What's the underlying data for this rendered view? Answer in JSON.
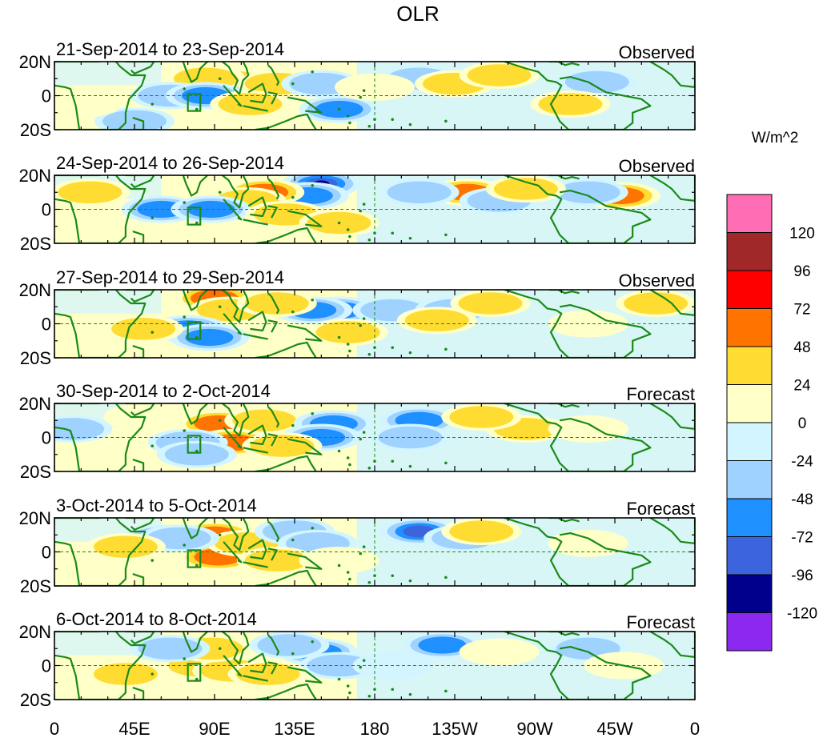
{
  "chart_data": {
    "type": "heatmap",
    "title": "OLR",
    "units": "W/m^2",
    "x_ticks": [
      "0",
      "45E",
      "90E",
      "135E",
      "180",
      "135W",
      "90W",
      "45W",
      "0"
    ],
    "y_ticks": [
      "20N",
      "0",
      "20S"
    ],
    "xlim": [
      0,
      360
    ],
    "ylim": [
      -20,
      20
    ],
    "colorbar": {
      "labels": [
        "120",
        "96",
        "72",
        "48",
        "24",
        "0",
        "-24",
        "-48",
        "-72",
        "-96",
        "-120"
      ],
      "colors": [
        "#ff6eb4",
        "#a02828",
        "#ff0000",
        "#ff7300",
        "#ffdc32",
        "#ffffc8",
        "#d2f5ff",
        "#a0d2ff",
        "#1e90ff",
        "#3c64dc",
        "#00008c",
        "#8c28f0"
      ]
    },
    "panels": [
      {
        "period": "21-Sep-2014 to 23-Sep-2014",
        "kind": "Observed",
        "anomalies": [
          {
            "lon": 100,
            "lat": 8,
            "value": 55
          },
          {
            "lon": 85,
            "lat": 10,
            "value": 30
          },
          {
            "lon": 125,
            "lat": 7,
            "value": 30
          },
          {
            "lon": 150,
            "lat": 7,
            "value": -45
          },
          {
            "lon": 160,
            "lat": -8,
            "value": -55
          },
          {
            "lon": 65,
            "lat": 0,
            "value": -45
          },
          {
            "lon": 85,
            "lat": 0,
            "value": -55
          },
          {
            "lon": 45,
            "lat": -15,
            "value": -45
          },
          {
            "lon": 205,
            "lat": 10,
            "value": -30
          },
          {
            "lon": 225,
            "lat": 7,
            "value": 35
          },
          {
            "lon": 305,
            "lat": 8,
            "value": -40
          },
          {
            "lon": 110,
            "lat": -5,
            "value": 30
          },
          {
            "lon": 250,
            "lat": 12,
            "value": 25
          },
          {
            "lon": 290,
            "lat": -5,
            "value": 25
          },
          {
            "lon": 180,
            "lat": 5,
            "value": 15
          },
          {
            "lon": 15,
            "lat": -5,
            "value": 20
          }
        ]
      },
      {
        "period": "24-Sep-2014 to 26-Sep-2014",
        "kind": "Observed",
        "anomalies": [
          {
            "lon": 150,
            "lat": 15,
            "value": -110
          },
          {
            "lon": 143,
            "lat": 8,
            "value": -50
          },
          {
            "lon": 118,
            "lat": 10,
            "value": 50
          },
          {
            "lon": 108,
            "lat": 5,
            "value": 30
          },
          {
            "lon": 232,
            "lat": 10,
            "value": 60
          },
          {
            "lon": 318,
            "lat": 8,
            "value": 60
          },
          {
            "lon": 60,
            "lat": 0,
            "value": -55
          },
          {
            "lon": 88,
            "lat": 0,
            "value": -50
          },
          {
            "lon": 205,
            "lat": 10,
            "value": -40
          },
          {
            "lon": 300,
            "lat": 10,
            "value": -40
          },
          {
            "lon": 250,
            "lat": 5,
            "value": -40
          },
          {
            "lon": 130,
            "lat": -3,
            "value": 30
          },
          {
            "lon": 160,
            "lat": -8,
            "value": 25
          },
          {
            "lon": 265,
            "lat": 12,
            "value": 25
          },
          {
            "lon": 20,
            "lat": 10,
            "value": 25
          }
        ]
      },
      {
        "period": "27-Sep-2014 to 29-Sep-2014",
        "kind": "Observed",
        "anomalies": [
          {
            "lon": 90,
            "lat": 15,
            "value": 70
          },
          {
            "lon": 98,
            "lat": 8,
            "value": 45
          },
          {
            "lon": 160,
            "lat": 8,
            "value": -75
          },
          {
            "lon": 145,
            "lat": 8,
            "value": -60
          },
          {
            "lon": 190,
            "lat": 8,
            "value": -40
          },
          {
            "lon": 225,
            "lat": 8,
            "value": -30
          },
          {
            "lon": 75,
            "lat": -3,
            "value": -55
          },
          {
            "lon": 87,
            "lat": -8,
            "value": -55
          },
          {
            "lon": 125,
            "lat": 12,
            "value": 35
          },
          {
            "lon": 215,
            "lat": 2,
            "value": 30
          },
          {
            "lon": 245,
            "lat": 12,
            "value": 30
          },
          {
            "lon": 338,
            "lat": 12,
            "value": 30
          },
          {
            "lon": 165,
            "lat": -5,
            "value": 30
          },
          {
            "lon": 300,
            "lat": 0,
            "value": 20
          },
          {
            "lon": 50,
            "lat": -3,
            "value": 25
          }
        ]
      },
      {
        "period": "30-Sep-2014 to 2-Oct-2014",
        "kind": "Forecast",
        "anomalies": [
          {
            "lon": 92,
            "lat": 8,
            "value": 70
          },
          {
            "lon": 100,
            "lat": -3,
            "value": 55
          },
          {
            "lon": 118,
            "lat": 10,
            "value": 45
          },
          {
            "lon": 157,
            "lat": 8,
            "value": -70
          },
          {
            "lon": 150,
            "lat": 0,
            "value": -50
          },
          {
            "lon": 205,
            "lat": 10,
            "value": -70
          },
          {
            "lon": 200,
            "lat": 0,
            "value": -30
          },
          {
            "lon": 75,
            "lat": -3,
            "value": -35
          },
          {
            "lon": 80,
            "lat": -10,
            "value": -30
          },
          {
            "lon": 128,
            "lat": -5,
            "value": 30
          },
          {
            "lon": 265,
            "lat": 5,
            "value": 30
          },
          {
            "lon": 240,
            "lat": 12,
            "value": 25
          },
          {
            "lon": 50,
            "lat": 12,
            "value": 20
          },
          {
            "lon": 10,
            "lat": 5,
            "value": -25
          },
          {
            "lon": 300,
            "lat": 5,
            "value": 20
          }
        ]
      },
      {
        "period": "3-Oct-2014 to 5-Oct-2014",
        "kind": "Forecast",
        "anomalies": [
          {
            "lon": 90,
            "lat": 10,
            "value": 65
          },
          {
            "lon": 92,
            "lat": -3,
            "value": 60
          },
          {
            "lon": 108,
            "lat": 5,
            "value": 45
          },
          {
            "lon": 135,
            "lat": 12,
            "value": -45
          },
          {
            "lon": 148,
            "lat": 5,
            "value": -35
          },
          {
            "lon": 205,
            "lat": 12,
            "value": -75
          },
          {
            "lon": 60,
            "lat": 8,
            "value": -40
          },
          {
            "lon": 70,
            "lat": 8,
            "value": -30
          },
          {
            "lon": 230,
            "lat": 8,
            "value": -25
          },
          {
            "lon": 40,
            "lat": 3,
            "value": 30
          },
          {
            "lon": 125,
            "lat": -5,
            "value": 30
          },
          {
            "lon": 240,
            "lat": 12,
            "value": 25
          },
          {
            "lon": 300,
            "lat": 5,
            "value": 20
          },
          {
            "lon": 160,
            "lat": -5,
            "value": 20
          },
          {
            "lon": 20,
            "lat": -10,
            "value": 20
          }
        ]
      },
      {
        "period": "6-Oct-2014 to 8-Oct-2014",
        "kind": "Forecast",
        "anomalies": [
          {
            "lon": 82,
            "lat": 0,
            "value": 45
          },
          {
            "lon": 100,
            "lat": -3,
            "value": 40
          },
          {
            "lon": 88,
            "lat": 10,
            "value": 35
          },
          {
            "lon": 148,
            "lat": 8,
            "value": -60
          },
          {
            "lon": 132,
            "lat": 12,
            "value": -45
          },
          {
            "lon": 160,
            "lat": 0,
            "value": -35
          },
          {
            "lon": 218,
            "lat": 12,
            "value": -55
          },
          {
            "lon": 65,
            "lat": 10,
            "value": -30
          },
          {
            "lon": 300,
            "lat": 10,
            "value": -25
          },
          {
            "lon": 120,
            "lat": -5,
            "value": 30
          },
          {
            "lon": 250,
            "lat": 8,
            "value": 20
          },
          {
            "lon": 40,
            "lat": -5,
            "value": 25
          },
          {
            "lon": 320,
            "lat": 0,
            "value": 15
          },
          {
            "lon": 190,
            "lat": 0,
            "value": -20
          }
        ]
      }
    ]
  }
}
